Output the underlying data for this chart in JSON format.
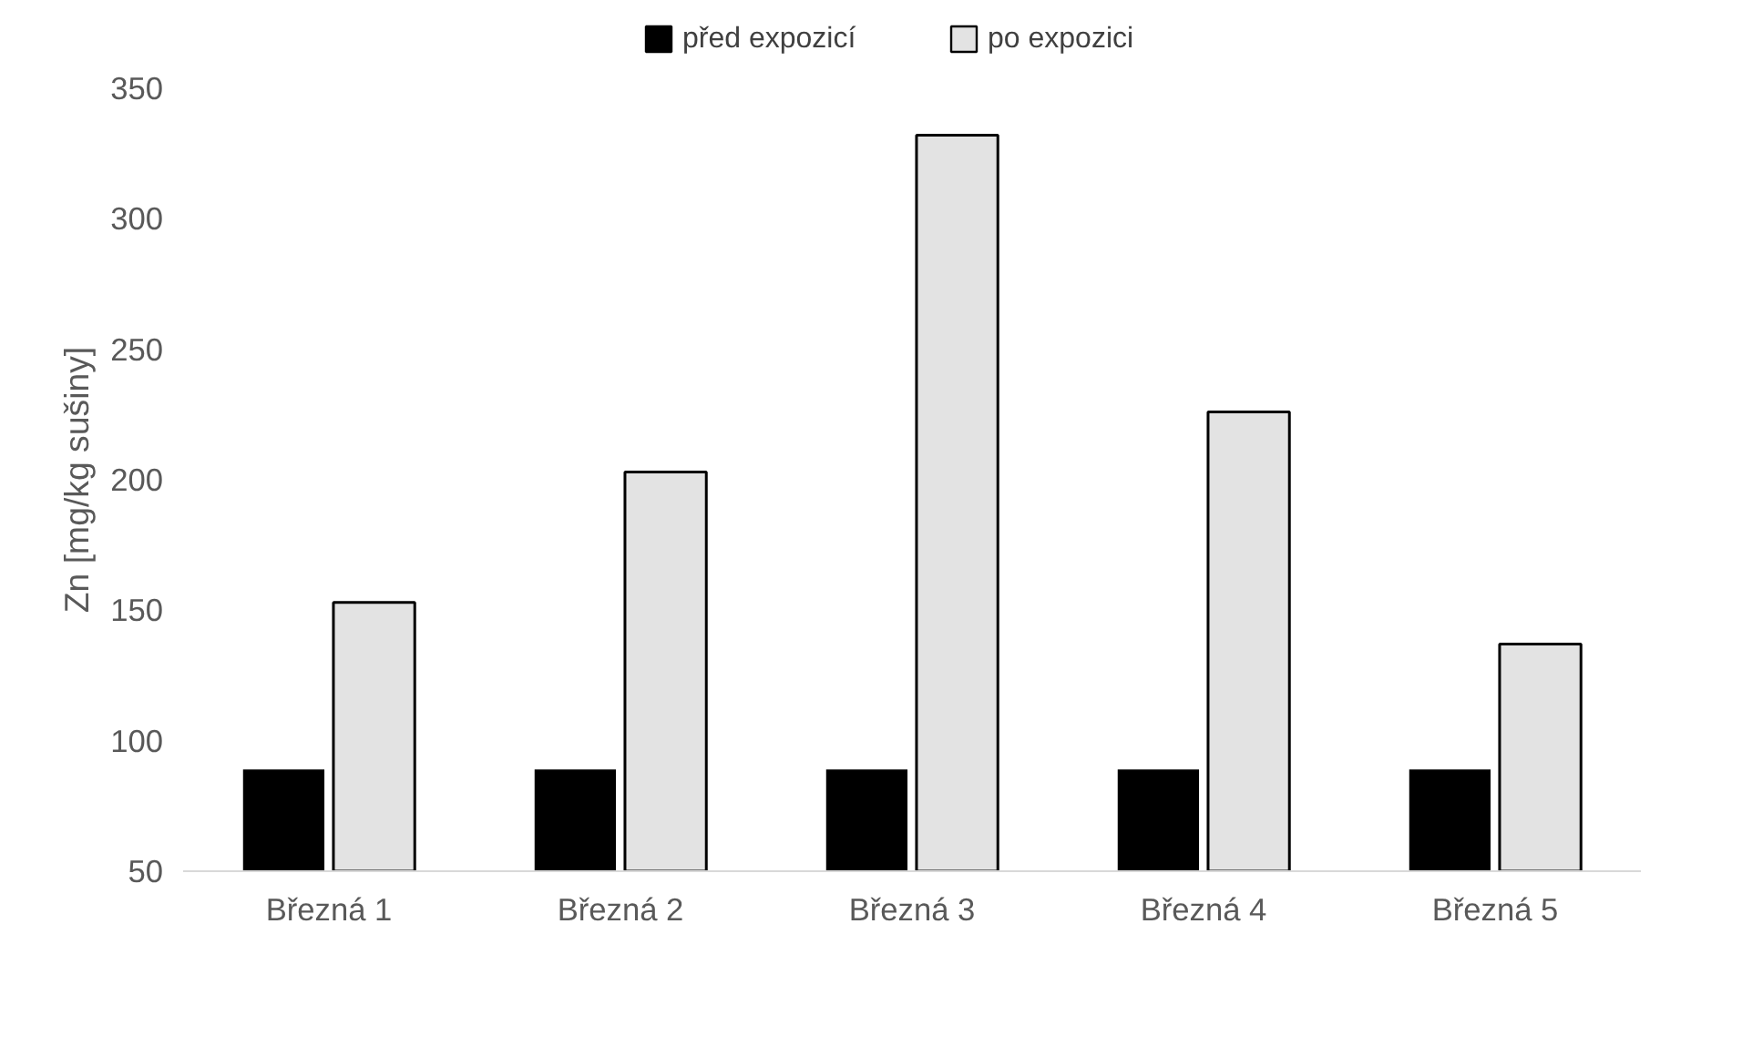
{
  "chart_data": {
    "type": "bar",
    "ylabel": "Zn [mg/kg sušiny]",
    "categories": [
      "Březná 1",
      "Březná 2",
      "Březná 3",
      "Březná 4",
      "Březná 5"
    ],
    "series": [
      {
        "name": "před expozicí",
        "color": "#000000",
        "values": [
          89,
          89,
          89,
          89,
          89
        ]
      },
      {
        "name": "po expozici",
        "color": "#e3e3e3",
        "values": [
          153,
          203,
          332,
          226,
          137
        ]
      }
    ],
    "ylim": [
      50,
      350
    ],
    "yticks": [
      50,
      100,
      150,
      200,
      250,
      300,
      350
    ],
    "grid": false,
    "legend": "top"
  }
}
